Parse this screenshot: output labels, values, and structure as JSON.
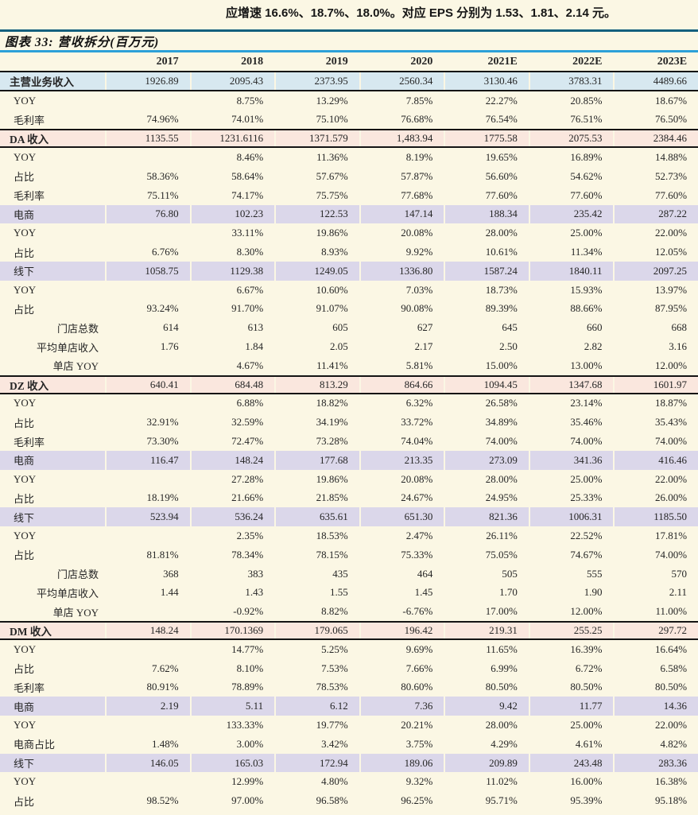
{
  "page": {
    "intro_text": "应增速 16.6%、18.7%、18.0%。对应 EPS 分别为 1.53、1.81、2.14 元。",
    "table": {
      "title": "图表 33: 营收拆分(百万元)",
      "columns": [
        "2017",
        "2018",
        "2019",
        "2020",
        "2021E",
        "2022E",
        "2023E"
      ],
      "rows": [
        {
          "label": "主营业务收入",
          "style": "blue",
          "values": [
            "1926.89",
            "2095.43",
            "2373.95",
            "2560.34",
            "3130.46",
            "3783.31",
            "4489.66"
          ]
        },
        {
          "label": "YOY",
          "style": "plain",
          "values": [
            "",
            "8.75%",
            "13.29%",
            "7.85%",
            "22.27%",
            "20.85%",
            "18.67%"
          ]
        },
        {
          "label": "毛利率",
          "style": "plain",
          "values": [
            "74.96%",
            "74.01%",
            "75.10%",
            "76.68%",
            "76.54%",
            "76.51%",
            "76.50%"
          ]
        },
        {
          "label": "DA 收入",
          "style": "pink",
          "values": [
            "1135.55",
            "1231.6116",
            "1371.579",
            "1,483.94",
            "1775.58",
            "2075.53",
            "2384.46"
          ]
        },
        {
          "label": "YOY",
          "style": "plain",
          "values": [
            "",
            "8.46%",
            "11.36%",
            "8.19%",
            "19.65%",
            "16.89%",
            "14.88%"
          ]
        },
        {
          "label": "占比",
          "style": "plain",
          "values": [
            "58.36%",
            "58.64%",
            "57.67%",
            "57.87%",
            "56.60%",
            "54.62%",
            "52.73%"
          ]
        },
        {
          "label": "毛利率",
          "style": "plain",
          "values": [
            "75.11%",
            "74.17%",
            "75.75%",
            "77.68%",
            "77.60%",
            "77.60%",
            "77.60%"
          ]
        },
        {
          "label": "电商",
          "style": "lavender",
          "values": [
            "76.80",
            "102.23",
            "122.53",
            "147.14",
            "188.34",
            "235.42",
            "287.22"
          ]
        },
        {
          "label": "YOY",
          "style": "plain",
          "values": [
            "",
            "33.11%",
            "19.86%",
            "20.08%",
            "28.00%",
            "25.00%",
            "22.00%"
          ]
        },
        {
          "label": "占比",
          "style": "plain",
          "values": [
            "6.76%",
            "8.30%",
            "8.93%",
            "9.92%",
            "10.61%",
            "11.34%",
            "12.05%"
          ]
        },
        {
          "label": "线下",
          "style": "lavender",
          "values": [
            "1058.75",
            "1129.38",
            "1249.05",
            "1336.80",
            "1587.24",
            "1840.11",
            "2097.25"
          ]
        },
        {
          "label": "YOY",
          "style": "plain",
          "values": [
            "",
            "6.67%",
            "10.60%",
            "7.03%",
            "18.73%",
            "15.93%",
            "13.97%"
          ]
        },
        {
          "label": "占比",
          "style": "plain",
          "values": [
            "93.24%",
            "91.70%",
            "91.07%",
            "90.08%",
            "89.39%",
            "88.66%",
            "87.95%"
          ]
        },
        {
          "label": "门店总数",
          "style": "indent",
          "values": [
            "614",
            "613",
            "605",
            "627",
            "645",
            "660",
            "668"
          ]
        },
        {
          "label": "平均单店收入",
          "style": "indent",
          "values": [
            "1.76",
            "1.84",
            "2.05",
            "2.17",
            "2.50",
            "2.82",
            "3.16"
          ]
        },
        {
          "label": "单店 YOY",
          "style": "indent",
          "values": [
            "",
            "4.67%",
            "11.41%",
            "5.81%",
            "15.00%",
            "13.00%",
            "12.00%"
          ]
        },
        {
          "label": "DZ 收入",
          "style": "pink",
          "values": [
            "640.41",
            "684.48",
            "813.29",
            "864.66",
            "1094.45",
            "1347.68",
            "1601.97"
          ]
        },
        {
          "label": "YOY",
          "style": "plain",
          "values": [
            "",
            "6.88%",
            "18.82%",
            "6.32%",
            "26.58%",
            "23.14%",
            "18.87%"
          ]
        },
        {
          "label": "占比",
          "style": "plain",
          "values": [
            "32.91%",
            "32.59%",
            "34.19%",
            "33.72%",
            "34.89%",
            "35.46%",
            "35.43%"
          ]
        },
        {
          "label": "毛利率",
          "style": "plain",
          "values": [
            "73.30%",
            "72.47%",
            "73.28%",
            "74.04%",
            "74.00%",
            "74.00%",
            "74.00%"
          ]
        },
        {
          "label": "电商",
          "style": "lavender",
          "values": [
            "116.47",
            "148.24",
            "177.68",
            "213.35",
            "273.09",
            "341.36",
            "416.46"
          ]
        },
        {
          "label": "YOY",
          "style": "plain",
          "values": [
            "",
            "27.28%",
            "19.86%",
            "20.08%",
            "28.00%",
            "25.00%",
            "22.00%"
          ]
        },
        {
          "label": "占比",
          "style": "plain",
          "values": [
            "18.19%",
            "21.66%",
            "21.85%",
            "24.67%",
            "24.95%",
            "25.33%",
            "26.00%"
          ]
        },
        {
          "label": "线下",
          "style": "lavender",
          "values": [
            "523.94",
            "536.24",
            "635.61",
            "651.30",
            "821.36",
            "1006.31",
            "1185.50"
          ]
        },
        {
          "label": "YOY",
          "style": "plain",
          "values": [
            "",
            "2.35%",
            "18.53%",
            "2.47%",
            "26.11%",
            "22.52%",
            "17.81%"
          ]
        },
        {
          "label": "占比",
          "style": "plain",
          "values": [
            "81.81%",
            "78.34%",
            "78.15%",
            "75.33%",
            "75.05%",
            "74.67%",
            "74.00%"
          ]
        },
        {
          "label": "门店总数",
          "style": "indent",
          "values": [
            "368",
            "383",
            "435",
            "464",
            "505",
            "555",
            "570"
          ]
        },
        {
          "label": "平均单店收入",
          "style": "indent",
          "values": [
            "1.44",
            "1.43",
            "1.55",
            "1.45",
            "1.70",
            "1.90",
            "2.11"
          ]
        },
        {
          "label": "单店 YOY",
          "style": "indent",
          "values": [
            "",
            "-0.92%",
            "8.82%",
            "-6.76%",
            "17.00%",
            "12.00%",
            "11.00%"
          ]
        },
        {
          "label": "DM 收入",
          "style": "pink",
          "values": [
            "148.24",
            "170.1369",
            "179.065",
            "196.42",
            "219.31",
            "255.25",
            "297.72"
          ]
        },
        {
          "label": "YOY",
          "style": "plain",
          "values": [
            "",
            "14.77%",
            "5.25%",
            "9.69%",
            "11.65%",
            "16.39%",
            "16.64%"
          ]
        },
        {
          "label": "占比",
          "style": "plain",
          "values": [
            "7.62%",
            "8.10%",
            "7.53%",
            "7.66%",
            "6.99%",
            "6.72%",
            "6.58%"
          ]
        },
        {
          "label": "毛利率",
          "style": "plain",
          "values": [
            "80.91%",
            "78.89%",
            "78.53%",
            "80.60%",
            "80.50%",
            "80.50%",
            "80.50%"
          ]
        },
        {
          "label": "电商",
          "style": "lavender",
          "values": [
            "2.19",
            "5.11",
            "6.12",
            "7.36",
            "9.42",
            "11.77",
            "14.36"
          ]
        },
        {
          "label": "YOY",
          "style": "plain",
          "values": [
            "",
            "133.33%",
            "19.77%",
            "20.21%",
            "28.00%",
            "25.00%",
            "22.00%"
          ]
        },
        {
          "label": "电商占比",
          "style": "plain",
          "values": [
            "1.48%",
            "3.00%",
            "3.42%",
            "3.75%",
            "4.29%",
            "4.61%",
            "4.82%"
          ]
        },
        {
          "label": "线下",
          "style": "lavender",
          "values": [
            "146.05",
            "165.03",
            "172.94",
            "189.06",
            "209.89",
            "243.48",
            "283.36"
          ]
        },
        {
          "label": "YOY",
          "style": "plain",
          "values": [
            "",
            "12.99%",
            "4.80%",
            "9.32%",
            "11.02%",
            "16.00%",
            "16.38%"
          ]
        },
        {
          "label": "占比",
          "style": "plain",
          "values": [
            "98.52%",
            "97.00%",
            "96.58%",
            "96.25%",
            "95.71%",
            "95.39%",
            "95.18%"
          ]
        }
      ],
      "colors": {
        "background": "#FBF7E4",
        "row_blue": "#D7E8F0",
        "row_pink": "#FAE7DE",
        "row_lavender": "#DBD7EA",
        "top_rule": "#14607E",
        "title_rule": "#2CA0D8",
        "heavy_rule": "#141414"
      }
    }
  }
}
